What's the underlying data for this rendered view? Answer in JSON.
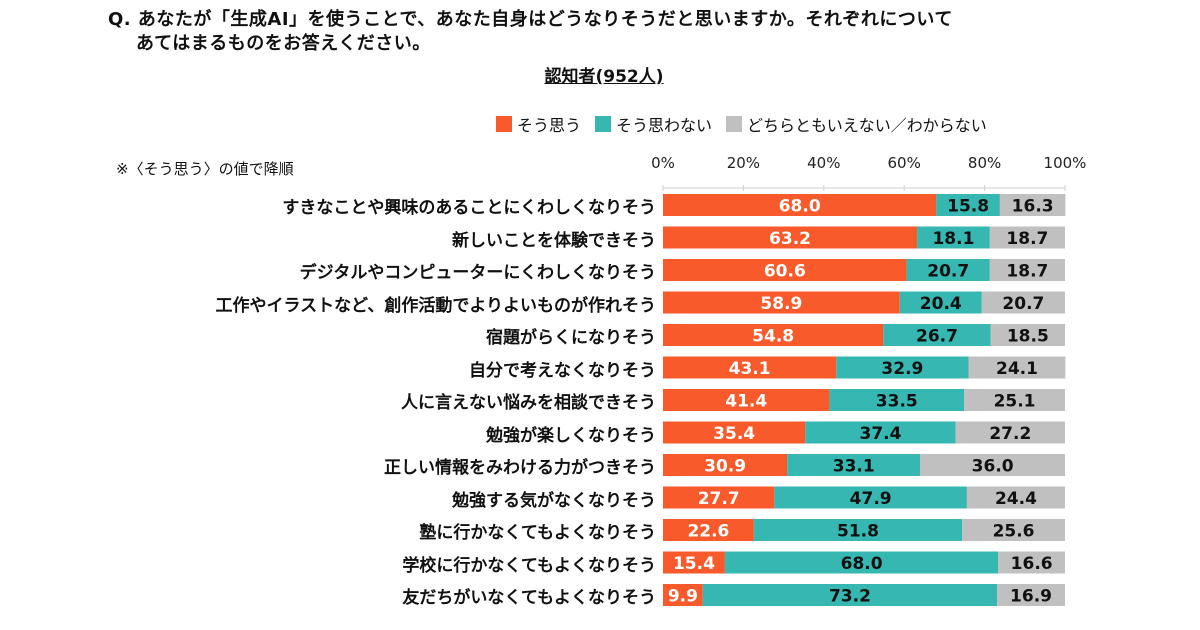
{
  "question": {
    "line1": "Q. あなたが「生成AI」を使うことで、あなた自身はどうなりそうだと思いますか。それぞれについて",
    "line2": "あてはまるものをお答えください。"
  },
  "subtitle": "認知者(952人)",
  "note": "※〈そう思う〉の値で降順",
  "colors": {
    "agree": "#F95A2C",
    "disagree": "#36B7B1",
    "neutral": "#C0C0C0"
  },
  "chart_data": {
    "type": "bar",
    "orientation": "horizontal",
    "stacked": "100%",
    "title": "認知者(952人)",
    "xlabel": "",
    "ylabel": "",
    "xlim": [
      0,
      100
    ],
    "x_ticks": [
      "0%",
      "20%",
      "40%",
      "60%",
      "80%",
      "100%"
    ],
    "legend_position": "top-right",
    "categories": [
      "すきなことや興味のあることにくわしくなりそう",
      "新しいことを体験できそう",
      "デジタルやコンピューターにくわしくなりそう",
      "工作やイラストなど、創作活動でよりよいものが作れそう",
      "宿題がらくになりそう",
      "自分で考えなくなりそう",
      "人に言えない悩みを相談できそう",
      "勉強が楽しくなりそう",
      "正しい情報をみわける力がつきそう",
      "勉強する気がなくなりそう",
      "塾に行かなくてもよくなりそう",
      "学校に行かなくてもよくなりそう",
      "友だちがいなくてもよくなりそう"
    ],
    "series": [
      {
        "name": "そう思う",
        "color": "#F95A2C",
        "values": [
          68.0,
          63.2,
          60.6,
          58.9,
          54.8,
          43.1,
          41.4,
          35.4,
          30.9,
          27.7,
          22.6,
          15.4,
          9.9
        ]
      },
      {
        "name": "そう思わない",
        "color": "#36B7B1",
        "values": [
          15.8,
          18.1,
          20.7,
          20.4,
          26.7,
          32.9,
          33.5,
          37.4,
          33.1,
          47.9,
          51.8,
          68.0,
          73.2
        ]
      },
      {
        "name": "どちらともいえない／わからない",
        "color": "#C0C0C0",
        "values": [
          16.3,
          18.7,
          18.7,
          20.7,
          18.5,
          24.1,
          25.1,
          27.2,
          36.0,
          24.4,
          25.6,
          16.6,
          16.9
        ]
      }
    ]
  }
}
